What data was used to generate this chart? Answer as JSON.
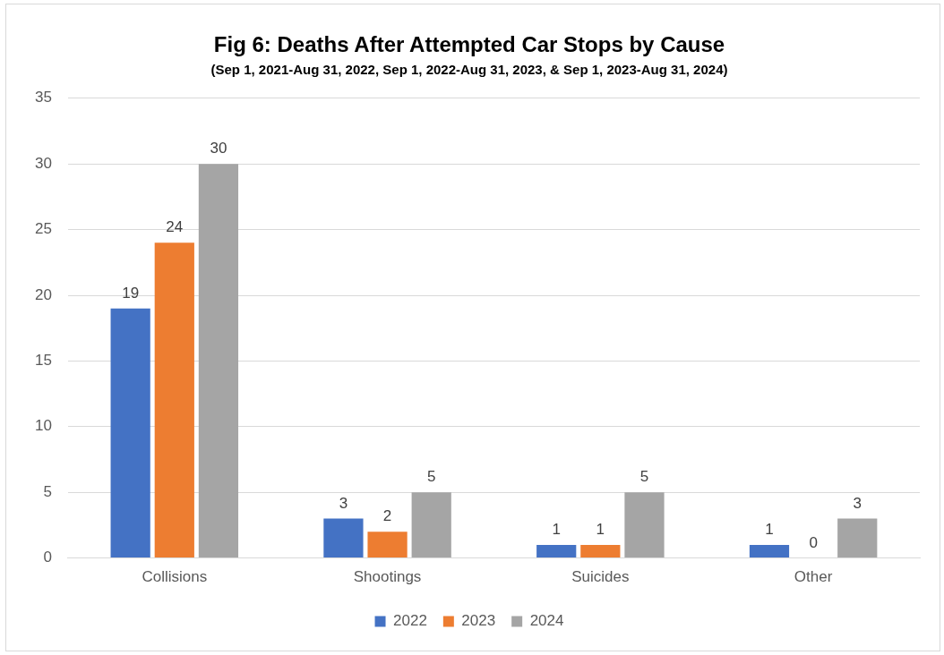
{
  "chart_data": {
    "type": "bar",
    "title": "Fig 6: Deaths After Attempted Car Stops by Cause",
    "subtitle": "(Sep 1, 2021-Aug 31, 2022, Sep 1, 2022-Aug 31, 2023, & Sep 1, 2023-Aug 31, 2024)",
    "categories": [
      "Collisions",
      "Shootings",
      "Suicides",
      "Other"
    ],
    "series": [
      {
        "name": "2022",
        "color": "#4472c4",
        "values": [
          19,
          3,
          1,
          1
        ]
      },
      {
        "name": "2023",
        "color": "#ed7d31",
        "values": [
          24,
          2,
          1,
          0
        ]
      },
      {
        "name": "2024",
        "color": "#a5a5a5",
        "values": [
          30,
          5,
          5,
          3
        ]
      }
    ],
    "ylim": [
      0,
      35
    ],
    "yticks": [
      0,
      5,
      10,
      15,
      20,
      25,
      30,
      35
    ],
    "grid": "y",
    "legend": "bottom",
    "data_labels": true
  }
}
